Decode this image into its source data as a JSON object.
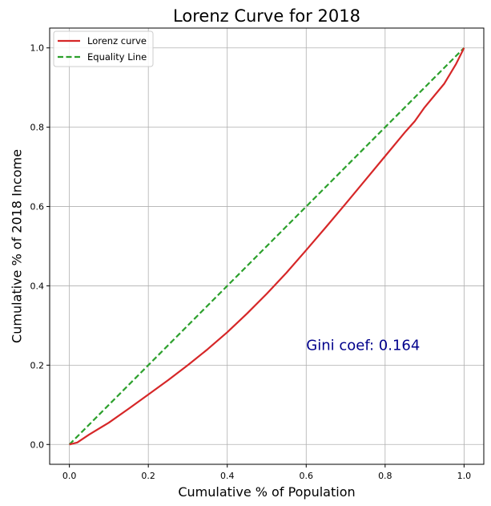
{
  "chart_data": {
    "type": "line",
    "title": "Lorenz Curve for 2018",
    "xlabel": "Cumulative % of Population",
    "ylabel": "Cumulative % of 2018 Income",
    "xlim": [
      -0.05,
      1.05
    ],
    "ylim": [
      -0.05,
      1.05
    ],
    "xticks": [
      0.0,
      0.2,
      0.4,
      0.6,
      0.8,
      1.0
    ],
    "yticks": [
      0.0,
      0.2,
      0.4,
      0.6,
      0.8,
      1.0
    ],
    "xtick_labels": [
      "0.0",
      "0.2",
      "0.4",
      "0.6",
      "0.8",
      "1.0"
    ],
    "ytick_labels": [
      "0.0",
      "0.2",
      "0.4",
      "0.6",
      "0.8",
      "1.0"
    ],
    "grid": true,
    "legend_position": "top-left",
    "series": [
      {
        "name": "Lorenz curve",
        "color": "#d62728",
        "style": "solid",
        "x": [
          0.0,
          0.02,
          0.05,
          0.1,
          0.15,
          0.2,
          0.25,
          0.3,
          0.35,
          0.4,
          0.45,
          0.5,
          0.55,
          0.6,
          0.65,
          0.7,
          0.75,
          0.8,
          0.85,
          0.875,
          0.9,
          0.95,
          0.98,
          1.0
        ],
        "y": [
          0.0,
          0.005,
          0.025,
          0.055,
          0.09,
          0.126,
          0.162,
          0.2,
          0.24,
          0.283,
          0.33,
          0.38,
          0.433,
          0.49,
          0.548,
          0.607,
          0.667,
          0.727,
          0.787,
          0.815,
          0.85,
          0.91,
          0.96,
          1.0
        ]
      },
      {
        "name": "Equality Line",
        "color": "#2ca02c",
        "style": "dashed",
        "x": [
          0.0,
          1.0
        ],
        "y": [
          0.0,
          1.0
        ]
      }
    ],
    "annotations": [
      {
        "text": "Gini coef: 0.164",
        "x": 0.6,
        "y": 0.25,
        "color": "#00008b"
      }
    ]
  }
}
